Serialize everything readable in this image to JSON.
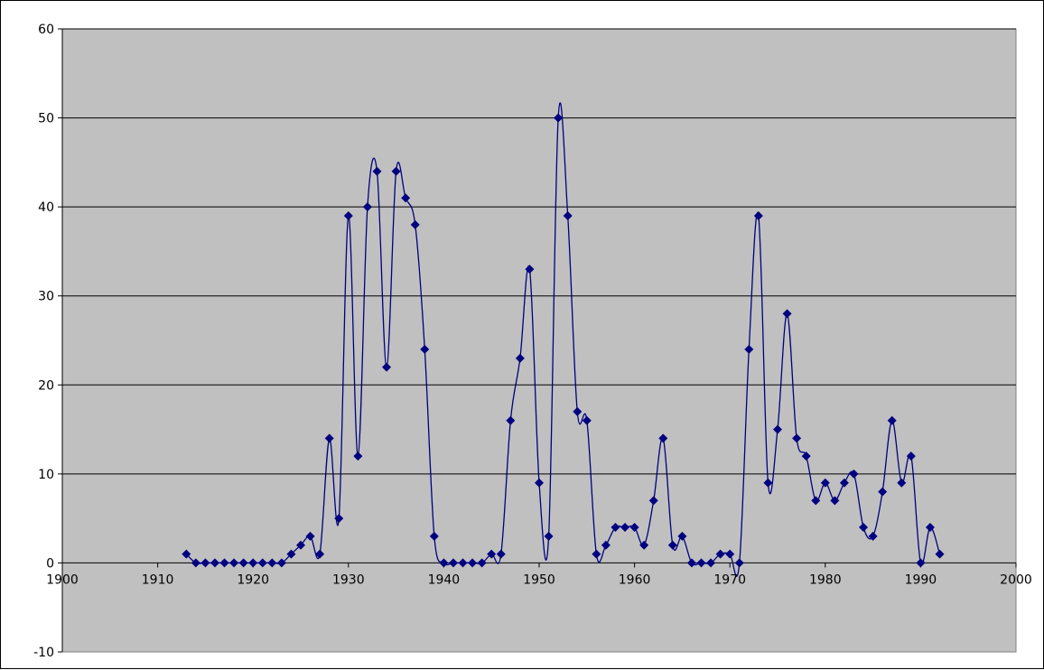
{
  "chart_data": {
    "type": "scatter",
    "line": "smoothed",
    "marker": "diamond",
    "title": "",
    "xlabel": "",
    "ylabel": "",
    "xlim": [
      1900,
      2000
    ],
    "ylim": [
      -10,
      60
    ],
    "x_ticks": [
      "1900",
      "1910",
      "1920",
      "1930",
      "1940",
      "1950",
      "1960",
      "1970",
      "1980",
      "1990",
      "2000"
    ],
    "y_ticks": [
      "-10",
      "0",
      "10",
      "20",
      "30",
      "40",
      "50",
      "60"
    ],
    "grid": "horizontal major gridlines",
    "legend": "none",
    "colors": {
      "series": "#000080",
      "plot_area": "#c0c0c0",
      "gridline": "#000000"
    },
    "series": [
      {
        "x": [
          1913,
          1914,
          1915,
          1916,
          1917,
          1918,
          1919,
          1920,
          1921,
          1922,
          1923,
          1924,
          1925,
          1926,
          1927,
          1928,
          1929,
          1930,
          1931,
          1932,
          1933,
          1934,
          1935,
          1936,
          1937,
          1938,
          1939,
          1940,
          1941,
          1942,
          1943,
          1944,
          1945,
          1946,
          1947,
          1948,
          1949,
          1950,
          1951,
          1952,
          1953,
          1954,
          1955,
          1956,
          1957,
          1958,
          1959,
          1960,
          1961,
          1962,
          1963,
          1964,
          1965,
          1966,
          1967,
          1968,
          1969,
          1970,
          1971,
          1972,
          1973,
          1974,
          1975,
          1976,
          1977,
          1978,
          1979,
          1980,
          1981,
          1982,
          1983,
          1984,
          1985,
          1986,
          1987,
          1988,
          1989,
          1990,
          1991,
          1992
        ],
        "y": [
          1,
          0,
          0,
          0,
          0,
          0,
          0,
          0,
          0,
          0,
          0,
          1,
          2,
          3,
          1,
          14,
          5,
          39,
          12,
          40,
          44,
          22,
          44,
          41,
          38,
          24,
          3,
          0,
          0,
          0,
          0,
          0,
          1,
          1,
          16,
          23,
          33,
          9,
          3,
          50,
          39,
          17,
          16,
          1,
          2,
          4,
          4,
          4,
          2,
          7,
          14,
          2,
          3,
          0,
          0,
          0,
          1,
          1,
          0,
          24,
          39,
          9,
          15,
          28,
          14,
          12,
          7,
          9,
          7,
          9,
          10,
          4,
          3,
          8,
          16,
          9,
          12,
          0,
          4,
          1
        ]
      }
    ]
  }
}
